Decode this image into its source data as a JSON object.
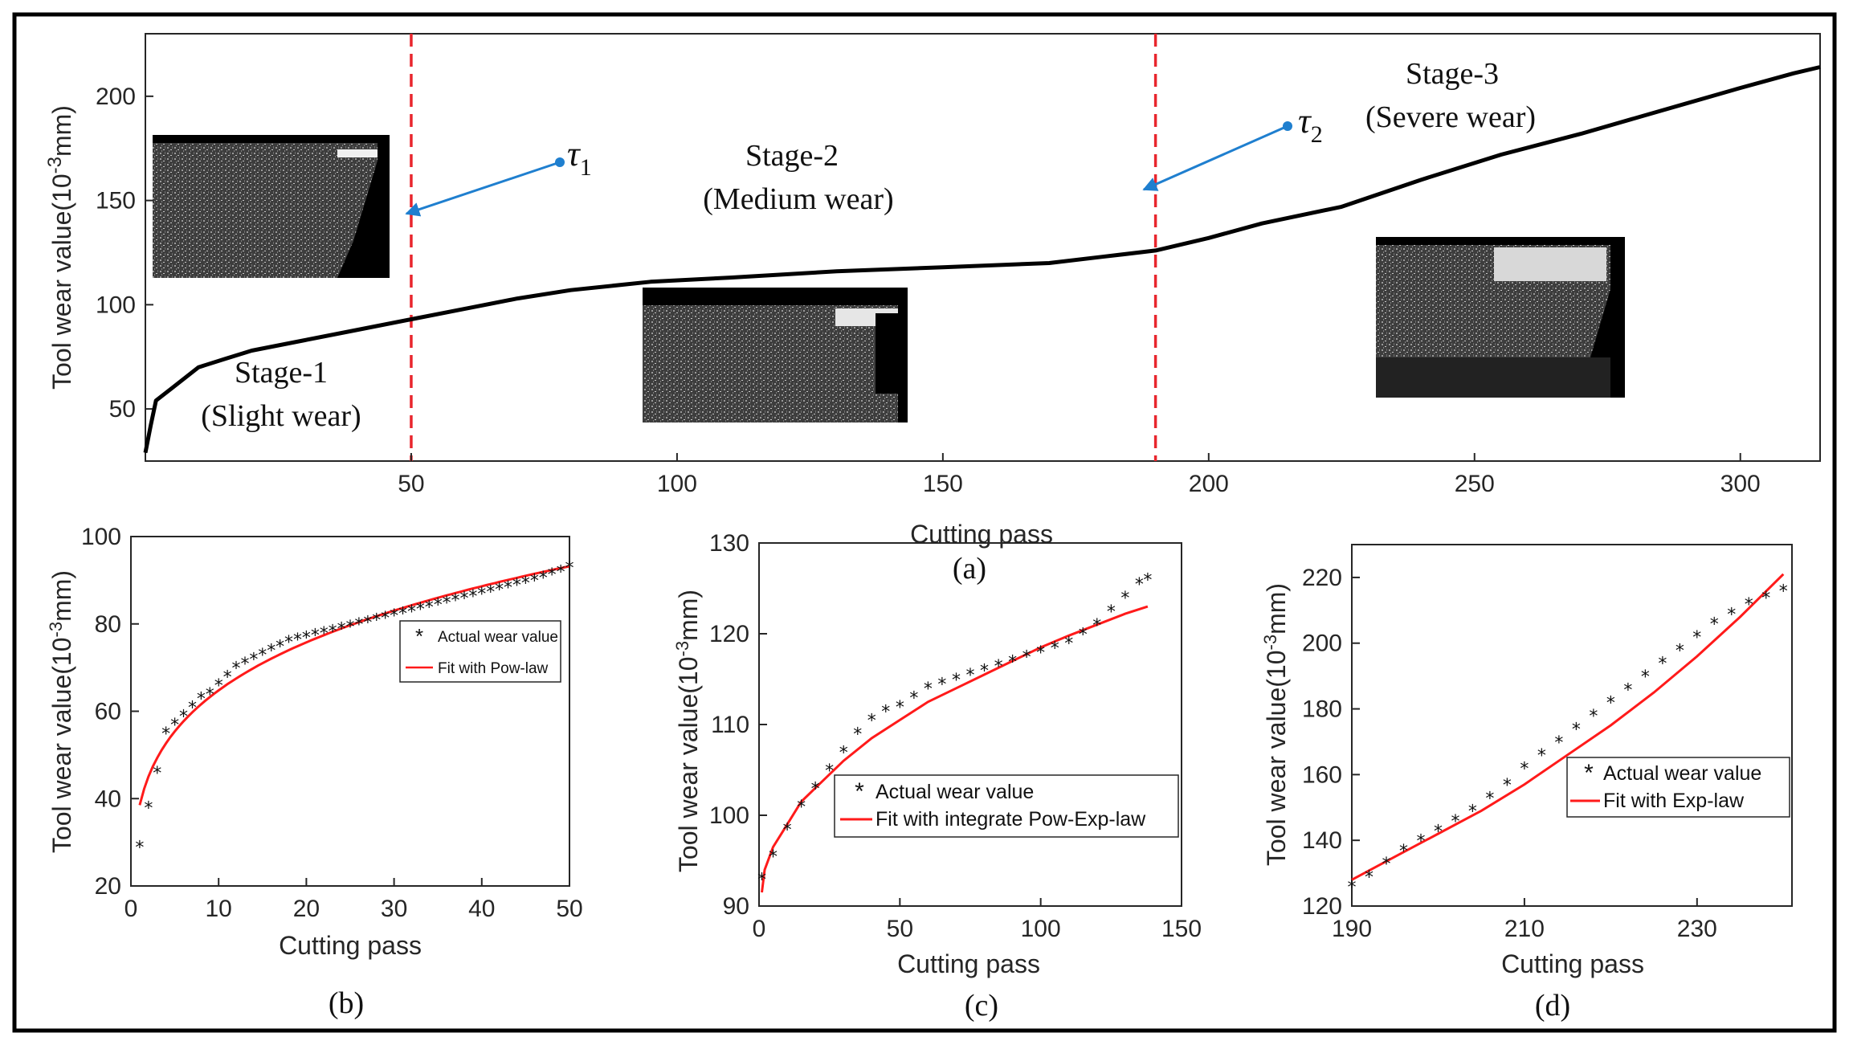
{
  "figure": {
    "main": {
      "type": "line",
      "xlabel": "Cutting pass",
      "ylabel": "Tool wear value(10^{-3}mm)",
      "xlim": [
        0,
        315
      ],
      "ylim": [
        25,
        230
      ],
      "xticks": [
        50,
        100,
        150,
        200,
        250,
        300
      ],
      "yticks": [
        50,
        100,
        150,
        200
      ],
      "x": [
        0,
        1,
        2,
        5,
        10,
        15,
        20,
        30,
        40,
        50,
        60,
        70,
        80,
        95,
        110,
        130,
        150,
        170,
        180,
        190,
        200,
        210,
        225,
        240,
        255,
        270,
        285,
        300,
        310,
        315
      ],
      "y": [
        29,
        42,
        54,
        60,
        70,
        74,
        78,
        83,
        88,
        93,
        98,
        103,
        107,
        111,
        113,
        116,
        118,
        120,
        123,
        126,
        132,
        139,
        147,
        160,
        172,
        182,
        193,
        204,
        211,
        214
      ],
      "dividers": [
        50,
        190
      ],
      "stage1_line1": "Stage-1",
      "stage1_line2": "(Slight wear)",
      "stage2_line1": "Stage-2",
      "stage2_line2": "(Medium wear)",
      "stage3_line1": "Stage-3",
      "stage3_line2": "(Severe wear)",
      "tau1_symbol": "τ",
      "tau1_sub": "1",
      "tau2_symbol": "τ",
      "tau2_sub": "2",
      "caption": "(a)"
    },
    "chart_b": {
      "type": "scatter+line",
      "xlabel": "Cutting pass",
      "ylabel": "Tool wear value(10^{-3}mm)",
      "xlim": [
        0,
        50
      ],
      "ylim": [
        20,
        100
      ],
      "xticks": [
        0,
        10,
        20,
        30,
        40,
        50
      ],
      "yticks": [
        20,
        40,
        60,
        80,
        100
      ],
      "actual_x": [
        1,
        2,
        3,
        4,
        5,
        6,
        7,
        8,
        9,
        10,
        11,
        12,
        13,
        14,
        15,
        16,
        17,
        18,
        19,
        20,
        21,
        22,
        23,
        24,
        25,
        26,
        27,
        28,
        29,
        30,
        31,
        32,
        33,
        34,
        35,
        36,
        37,
        38,
        39,
        40,
        41,
        42,
        43,
        44,
        45,
        46,
        47,
        48,
        49,
        50
      ],
      "actual_y": [
        29,
        38,
        46,
        55,
        57,
        59,
        61,
        63,
        64,
        66,
        68,
        70,
        71,
        72,
        73,
        74,
        75,
        76,
        76.5,
        77,
        77.5,
        78,
        78.5,
        79,
        79.5,
        80,
        80.5,
        81,
        81.5,
        82,
        82.5,
        83,
        83.5,
        84,
        84.5,
        85,
        85.5,
        86,
        86.5,
        87,
        87.5,
        88,
        88.5,
        89,
        89.5,
        90,
        90.7,
        91.4,
        92.1,
        93
      ],
      "fit_curve": "power-law",
      "fit_a": 38.5,
      "fit_b": 0.226,
      "fit_domain": [
        1,
        50
      ],
      "legend_actual": "Actual wear value",
      "legend_fit": "Fit with Pow-law",
      "caption": "(b)"
    },
    "chart_c": {
      "type": "scatter+line",
      "xlabel": "Cutting pass",
      "ylabel": "Tool wear value(10^{-3}mm)",
      "xlim": [
        0,
        150
      ],
      "ylim": [
        90,
        130
      ],
      "xticks": [
        0,
        50,
        100,
        150
      ],
      "yticks": [
        90,
        100,
        110,
        120,
        130
      ],
      "actual_x": [
        1,
        5,
        10,
        15,
        20,
        25,
        30,
        35,
        40,
        45,
        50,
        55,
        60,
        65,
        70,
        75,
        80,
        85,
        90,
        95,
        100,
        105,
        110,
        115,
        120,
        125,
        130,
        135,
        138
      ],
      "actual_y": [
        93,
        95.5,
        98.5,
        101,
        103,
        105,
        107,
        109,
        110.5,
        111.5,
        112,
        113,
        114,
        114.5,
        115,
        115.5,
        116,
        116.5,
        117,
        117.5,
        118,
        118.5,
        119,
        120,
        121,
        122.5,
        124,
        125.5,
        126
      ],
      "fit_x": [
        1,
        2,
        5,
        10,
        15,
        20,
        30,
        40,
        50,
        60,
        70,
        80,
        90,
        100,
        110,
        120,
        130,
        138
      ],
      "fit_y": [
        91.5,
        94,
        96.5,
        99,
        101.5,
        103,
        106,
        108.5,
        110.5,
        112.5,
        114,
        115.5,
        117,
        118.5,
        119.8,
        121,
        122.2,
        123
      ],
      "legend_actual": "Actual wear value",
      "legend_fit": "Fit with integrate Pow-Exp-law",
      "caption": "(c)"
    },
    "chart_d": {
      "type": "scatter+line",
      "xlabel": "Cutting pass",
      "ylabel": "Tool wear value(10^{-3}mm)",
      "xlim": [
        190,
        241
      ],
      "ylim": [
        120,
        230
      ],
      "xticks": [
        190,
        210,
        230
      ],
      "yticks": [
        120,
        140,
        160,
        180,
        200,
        220
      ],
      "actual_x": [
        190,
        192,
        194,
        196,
        198,
        200,
        202,
        204,
        206,
        208,
        210,
        212,
        214,
        216,
        218,
        220,
        222,
        224,
        226,
        228,
        230,
        232,
        234,
        236,
        238,
        240
      ],
      "actual_y": [
        126,
        129,
        133,
        137,
        140,
        143,
        146,
        149,
        153,
        157,
        162,
        166,
        170,
        174,
        178,
        182,
        186,
        190,
        194,
        198,
        202,
        206,
        209,
        212,
        214,
        216
      ],
      "fit_x": [
        190,
        195,
        200,
        205,
        210,
        215,
        220,
        225,
        230,
        235,
        240
      ],
      "fit_y": [
        128,
        135,
        142,
        149,
        157,
        166,
        175,
        185,
        196,
        208,
        221
      ],
      "legend_actual": "Actual wear value",
      "legend_fit": "Fit with Exp-law",
      "caption": "(d)"
    }
  },
  "colors": {
    "axis": "#262626",
    "main_line": "#000000",
    "divider": "#e8262d",
    "fit": "#ff1a1a",
    "arrow": "#1f7fcf",
    "frame": "#000000"
  },
  "chart_data": [
    {
      "type": "line",
      "title": "(a)",
      "xlabel": "Cutting pass",
      "ylabel": "Tool wear value(10^{-3}mm)",
      "xlim": [
        0,
        315
      ],
      "ylim": [
        25,
        230
      ]
    },
    {
      "type": "scatter",
      "title": "(b)",
      "xlabel": "Cutting pass",
      "ylabel": "Tool wear value(10^{-3}mm)",
      "xlim": [
        0,
        50
      ],
      "ylim": [
        20,
        100
      ]
    },
    {
      "type": "scatter",
      "title": "(c)",
      "xlabel": "Cutting pass",
      "ylabel": "Tool wear value(10^{-3}mm)",
      "xlim": [
        0,
        150
      ],
      "ylim": [
        90,
        130
      ]
    },
    {
      "type": "scatter",
      "title": "(d)",
      "xlabel": "Cutting pass",
      "ylabel": "Tool wear value(10^{-3}mm)",
      "xlim": [
        190,
        241
      ],
      "ylim": [
        120,
        230
      ]
    }
  ]
}
